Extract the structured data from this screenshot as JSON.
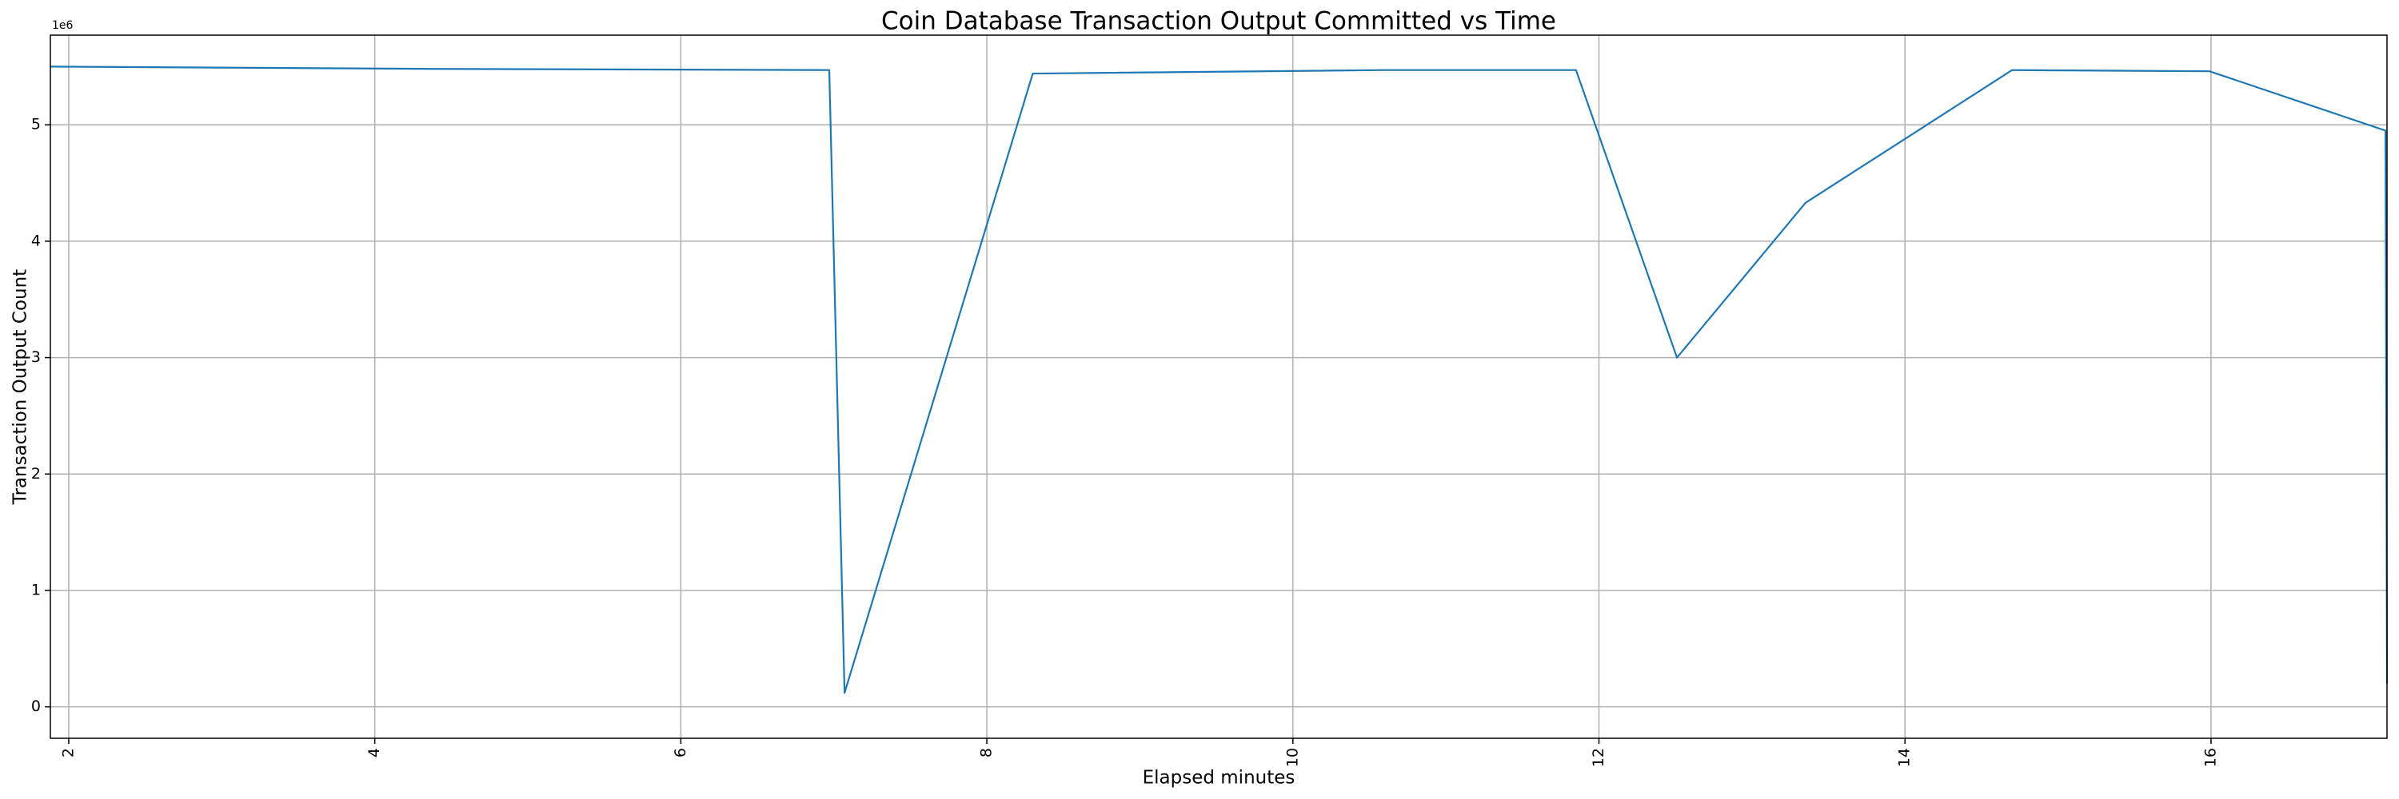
{
  "chart_data": {
    "type": "line",
    "title": "Coin Database Transaction Output Committed vs Time",
    "x_label": "Elapsed minutes",
    "y_label": "Transaction Output Count",
    "y_offset_label": "1e6",
    "x": [
      1.88,
      4.4,
      6.97,
      7.07,
      8.3,
      10.6,
      11.85,
      12.51,
      13.35,
      14.7,
      15.99,
      17.14,
      17.15
    ],
    "series": [
      {
        "name": "Transaction Output Count",
        "color": "#1f77b4",
        "values": [
          5.5,
          5.48,
          5.47,
          0.12,
          5.44,
          5.47,
          5.47,
          3.0,
          4.33,
          5.47,
          5.46,
          4.95,
          0.2
        ]
      }
    ],
    "xlim": [
      1.88,
      17.15
    ],
    "ylim": [
      -0.27,
      5.77
    ],
    "xticks": [
      2,
      4,
      6,
      8,
      10,
      12,
      14,
      16
    ],
    "yticks": [
      0,
      1,
      2,
      3,
      4,
      5
    ],
    "grid": true
  }
}
